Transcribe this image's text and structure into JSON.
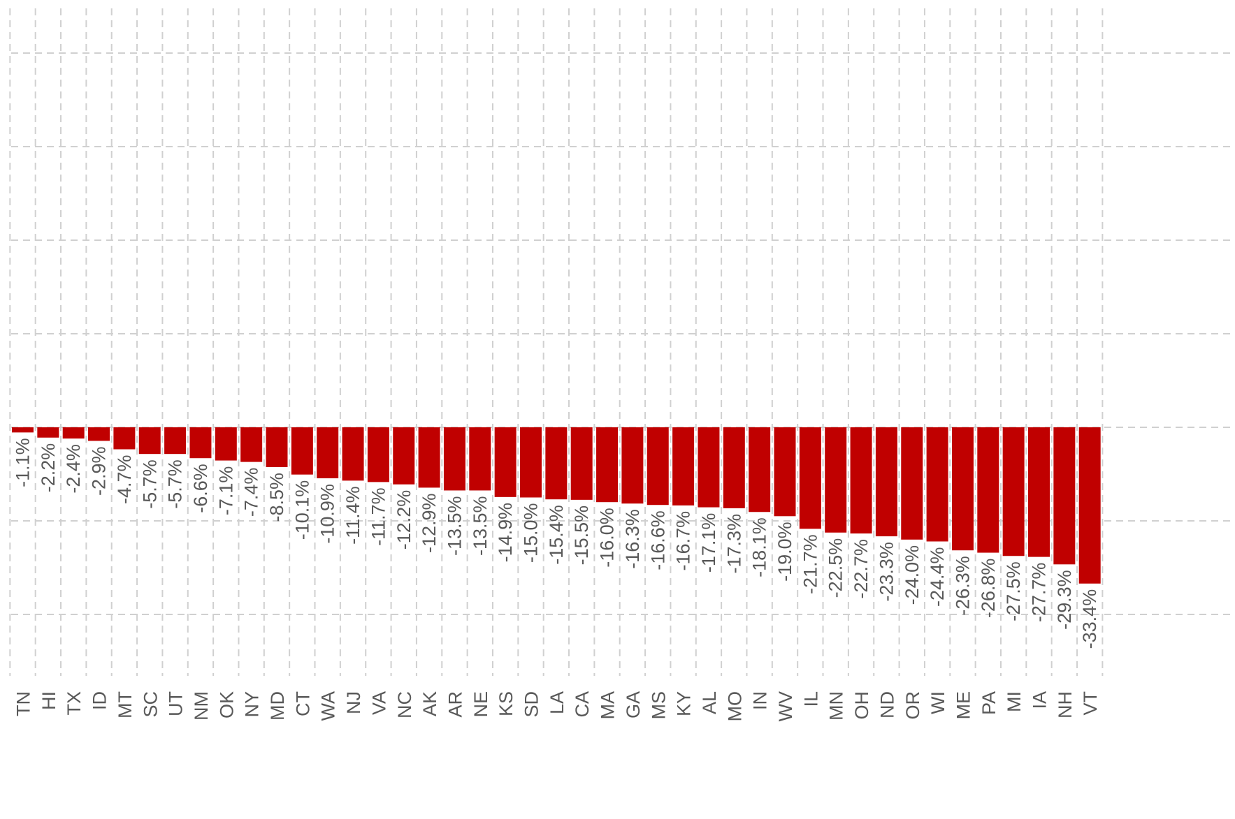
{
  "chart_data": {
    "type": "bar",
    "title": "",
    "xlabel": "",
    "ylabel": "",
    "bar_color": "#c00000",
    "grid": true,
    "categories": [
      "TN",
      "HI",
      "TX",
      "ID",
      "MT",
      "SC",
      "UT",
      "NM",
      "OK",
      "NY",
      "MD",
      "CT",
      "WA",
      "NJ",
      "VA",
      "NC",
      "AK",
      "AR",
      "NE",
      "KS",
      "SD",
      "LA",
      "CA",
      "MA",
      "GA",
      "MS",
      "KY",
      "AL",
      "MO",
      "IN",
      "WV",
      "IL",
      "MN",
      "OH",
      "ND",
      "OR",
      "WI",
      "ME",
      "PA",
      "MI",
      "IA",
      "NH",
      "VT"
    ],
    "values": [
      -1.1,
      -2.2,
      -2.4,
      -2.9,
      -4.7,
      -5.7,
      -5.7,
      -6.6,
      -7.1,
      -7.4,
      -8.5,
      -10.1,
      -10.9,
      -11.4,
      -11.7,
      -12.2,
      -12.9,
      -13.5,
      -13.5,
      -14.9,
      -15.0,
      -15.4,
      -15.5,
      -16.0,
      -16.3,
      -16.6,
      -16.7,
      -17.1,
      -17.3,
      -18.1,
      -19.0,
      -21.7,
      -22.5,
      -22.7,
      -23.3,
      -24.0,
      -24.4,
      -26.3,
      -26.8,
      -27.5,
      -27.7,
      -29.3,
      -33.4
    ],
    "data_labels": [
      "-1.1%",
      "-2.2%",
      "-2.4%",
      "-2.9%",
      "-4.7%",
      "-5.7%",
      "-5.7%",
      "-6.6%",
      "-7.1%",
      "-7.4%",
      "-8.5%",
      "-10.1%",
      "-10.9%",
      "-11.4%",
      "-11.7%",
      "-12.2%",
      "-12.9%",
      "-13.5%",
      "-13.5%",
      "-14.9%",
      "-15.0%",
      "-15.4%",
      "-15.5%",
      "-16.0%",
      "-16.3%",
      "-16.6%",
      "-16.7%",
      "-17.1%",
      "-17.3%",
      "-18.1%",
      "-19.0%",
      "-21.7%",
      "-22.5%",
      "-22.7%",
      "-23.3%",
      "-24.0%",
      "-24.4%",
      "-26.3%",
      "-26.8%",
      "-27.5%",
      "-27.7%",
      "-29.3%",
      "-33.4%"
    ],
    "ylim": [
      -60,
      100
    ]
  }
}
